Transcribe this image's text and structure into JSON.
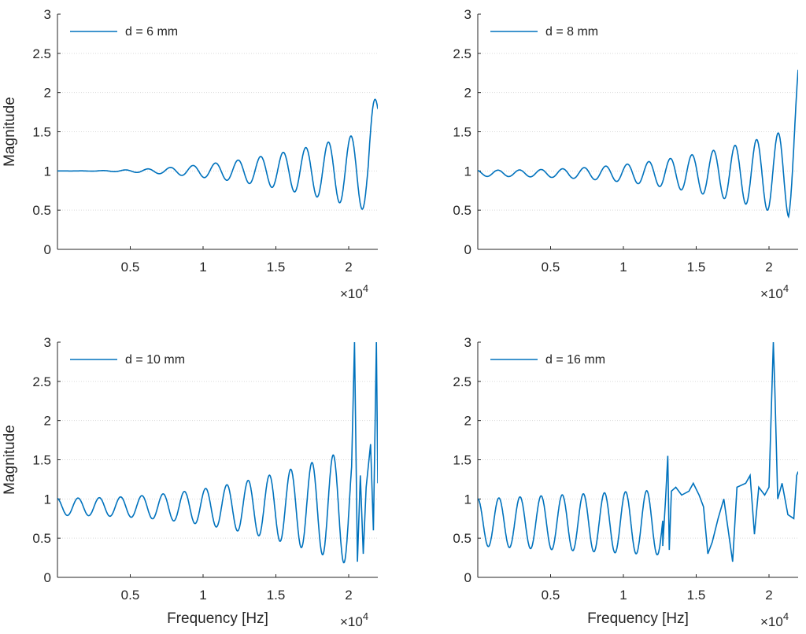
{
  "figure": {
    "x_exponent_base": "×10",
    "x_exponent_power": "4"
  },
  "chart_data": [
    {
      "type": "line",
      "title": "",
      "legend": "d = 6 mm",
      "legend_position": "top-left",
      "xlabel": "",
      "ylabel": "Magnitude",
      "xlim": [
        0,
        22000
      ],
      "ylim": [
        0,
        3
      ],
      "xticks": [
        5000,
        10000,
        15000,
        20000
      ],
      "xtick_labels": [
        "0.5",
        "1",
        "1.5",
        "2"
      ],
      "yticks": [
        0,
        0.5,
        1,
        1.5,
        2,
        2.5,
        3
      ],
      "ytick_labels": [
        "0",
        "0.5",
        "1",
        "1.5",
        "2",
        "2.5",
        "3"
      ],
      "color": "#0072BD",
      "model": {
        "period": 1550,
        "phase": 0,
        "base": 1.0,
        "amp_start": 0.0,
        "amp_end": 0.55,
        "growth": 2.4,
        "tail_end": 1.6
      }
    },
    {
      "type": "line",
      "title": "",
      "legend": "d = 8 mm",
      "legend_position": "top-left",
      "xlabel": "",
      "ylabel": "",
      "xlim": [
        0,
        22000
      ],
      "ylim": [
        0,
        3
      ],
      "xticks": [
        5000,
        10000,
        15000,
        20000
      ],
      "xtick_labels": [
        "0.5",
        "1",
        "1.5",
        "2"
      ],
      "yticks": [
        0,
        0.5,
        1,
        1.5,
        2,
        2.5,
        3
      ],
      "ytick_labels": [
        "0",
        "0.5",
        "1",
        "1.5",
        "2",
        "2.5",
        "3"
      ],
      "color": "#0072BD",
      "model": {
        "period": 1480,
        "phase": 0.4,
        "base": 0.97,
        "amp_start": 0.04,
        "amp_end": 0.6,
        "growth": 2.6,
        "tail_end": 1.75
      }
    },
    {
      "type": "line",
      "title": "",
      "legend": "d = 10 mm",
      "legend_position": "top-left",
      "xlabel": "Frequency [Hz]",
      "ylabel": "Magnitude",
      "xlim": [
        0,
        22000
      ],
      "ylim": [
        0,
        3
      ],
      "xticks": [
        5000,
        10000,
        15000,
        20000
      ],
      "xtick_labels": [
        "0.5",
        "1",
        "1.5",
        "2"
      ],
      "yticks": [
        0,
        0.5,
        1,
        1.5,
        2,
        2.5,
        3
      ],
      "ytick_labels": [
        "0",
        "0.5",
        "1",
        "1.5",
        "2",
        "2.5",
        "3"
      ],
      "color": "#0072BD",
      "model": {
        "period": 1460,
        "phase": 0.2,
        "base": 0.9,
        "amp_start": 0.11,
        "amp_end": 0.9,
        "growth": 2.4,
        "spikes": [
          [
            20400,
            3.0
          ],
          [
            20600,
            0.2
          ],
          [
            20800,
            1.3
          ],
          [
            21000,
            0.3
          ],
          [
            21200,
            1.15
          ],
          [
            21500,
            1.7
          ],
          [
            21700,
            0.6
          ],
          [
            21900,
            3.0
          ],
          [
            22000,
            1.2
          ]
        ]
      }
    },
    {
      "type": "line",
      "title": "",
      "legend": "d = 16 mm",
      "legend_position": "top-left",
      "xlabel": "Frequency [Hz]",
      "ylabel": "",
      "xlim": [
        0,
        22000
      ],
      "ylim": [
        0,
        3
      ],
      "xticks": [
        5000,
        10000,
        15000,
        20000
      ],
      "xtick_labels": [
        "0.5",
        "1",
        "1.5",
        "2"
      ],
      "yticks": [
        0,
        0.5,
        1,
        1.5,
        2,
        2.5,
        3
      ],
      "ytick_labels": [
        "0",
        "0.5",
        "1",
        "1.5",
        "2",
        "2.5",
        "3"
      ],
      "color": "#0072BD",
      "model": {
        "period": 1450,
        "phase": 0.0,
        "base": 0.7,
        "amp_start": 0.3,
        "amp_end": 0.5,
        "growth": 1.0,
        "cutoff": 12700,
        "segment": [
          [
            12700,
            0.4
          ],
          [
            12900,
            1.0
          ],
          [
            13050,
            1.55
          ],
          [
            13150,
            0.35
          ],
          [
            13300,
            1.1
          ],
          [
            13600,
            1.15
          ],
          [
            14000,
            1.05
          ],
          [
            14500,
            1.1
          ],
          [
            14800,
            1.2
          ],
          [
            15200,
            1.05
          ],
          [
            15500,
            0.9
          ],
          [
            15800,
            0.3
          ],
          [
            16100,
            0.45
          ],
          [
            16500,
            0.75
          ],
          [
            16900,
            1.0
          ],
          [
            17200,
            0.6
          ],
          [
            17500,
            0.2
          ],
          [
            17800,
            1.15
          ],
          [
            18400,
            1.2
          ],
          [
            18700,
            1.3
          ],
          [
            19000,
            0.55
          ],
          [
            19300,
            1.15
          ],
          [
            19700,
            1.05
          ],
          [
            20000,
            1.15
          ],
          [
            20300,
            3.0
          ],
          [
            20400,
            2.4
          ],
          [
            20600,
            1.0
          ],
          [
            20900,
            1.2
          ],
          [
            21300,
            0.8
          ],
          [
            21700,
            0.75
          ],
          [
            21900,
            1.3
          ],
          [
            22000,
            1.35
          ]
        ]
      }
    }
  ]
}
